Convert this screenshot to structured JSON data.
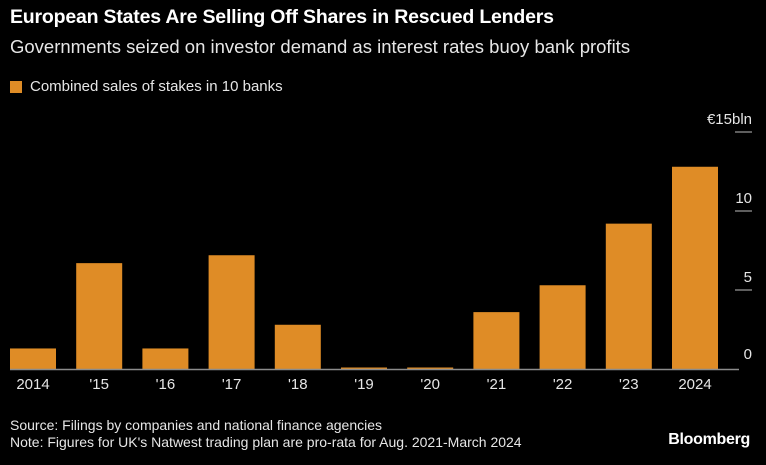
{
  "title": "European States Are Selling Off Shares in Rescued Lenders",
  "subtitle": "Governments seized on investor demand as interest rates buoy bank profits",
  "source": "Source: Filings by companies and national finance agencies",
  "note": "Note: Figures for UK's Natwest trading plan are pro-rata for Aug. 2021-March 2024",
  "logo": "Bloomberg",
  "colors": {
    "bar": "#DF8C26",
    "background": "#000000",
    "axis": "#8c8c8c"
  },
  "chart_data": {
    "type": "bar",
    "categories": [
      "2014",
      "'15",
      "'16",
      "'17",
      "'18",
      "'19",
      "'20",
      "'21",
      "'22",
      "'23",
      "2024"
    ],
    "series": [
      {
        "name": "Combined sales of stakes in 10 banks",
        "values": [
          1.3,
          6.7,
          1.3,
          7.2,
          2.8,
          0,
          0,
          3.6,
          5.3,
          9.2,
          12.8
        ]
      }
    ],
    "ylim": [
      0,
      15
    ],
    "yticks": [
      0,
      5,
      10,
      15
    ],
    "ytick_labels": [
      "0",
      "5",
      "10",
      "€15bln"
    ],
    "y_axis_position": "right",
    "grid": false,
    "legend": "top-left"
  }
}
